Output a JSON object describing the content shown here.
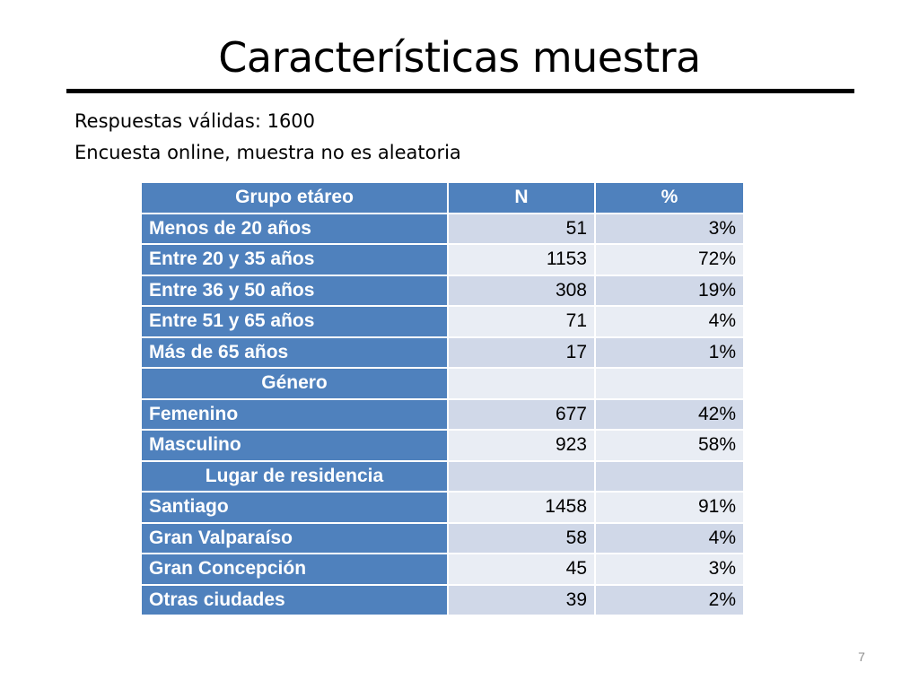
{
  "title": "Características muestra",
  "subtitle_lines": [
    "Respuestas válidas: 1600",
    "Encuesta online, muestra no es aleatoria"
  ],
  "table": {
    "headers": [
      "Grupo etáreo",
      "N",
      "%"
    ],
    "rows": [
      {
        "label": "Menos de 20 años",
        "n": "51",
        "pct": "3%",
        "section": false
      },
      {
        "label": "Entre 20 y 35 años",
        "n": "1153",
        "pct": "72%",
        "section": false
      },
      {
        "label": "Entre 36 y 50 años",
        "n": "308",
        "pct": "19%",
        "section": false
      },
      {
        "label": "Entre 51 y 65 años",
        "n": "71",
        "pct": "4%",
        "section": false
      },
      {
        "label": "Más de 65 años",
        "n": "17",
        "pct": "1%",
        "section": false
      },
      {
        "label": "Género",
        "n": "",
        "pct": "",
        "section": true
      },
      {
        "label": "Femenino",
        "n": "677",
        "pct": "42%",
        "section": false
      },
      {
        "label": "Masculino",
        "n": "923",
        "pct": "58%",
        "section": false
      },
      {
        "label": "Lugar de residencia",
        "n": "",
        "pct": "",
        "section": true
      },
      {
        "label": "Santiago",
        "n": "1458",
        "pct": "91%",
        "section": false
      },
      {
        "label": "Gran Valparaíso",
        "n": "58",
        "pct": "4%",
        "section": false
      },
      {
        "label": "Gran Concepción",
        "n": "45",
        "pct": "3%",
        "section": false
      },
      {
        "label": "Otras ciudades",
        "n": "39",
        "pct": "2%",
        "section": false
      }
    ]
  },
  "page_number": "7",
  "colors": {
    "header_blue": "#4f81bd",
    "band_dark": "#d0d8e8",
    "band_light": "#e9edf4"
  }
}
